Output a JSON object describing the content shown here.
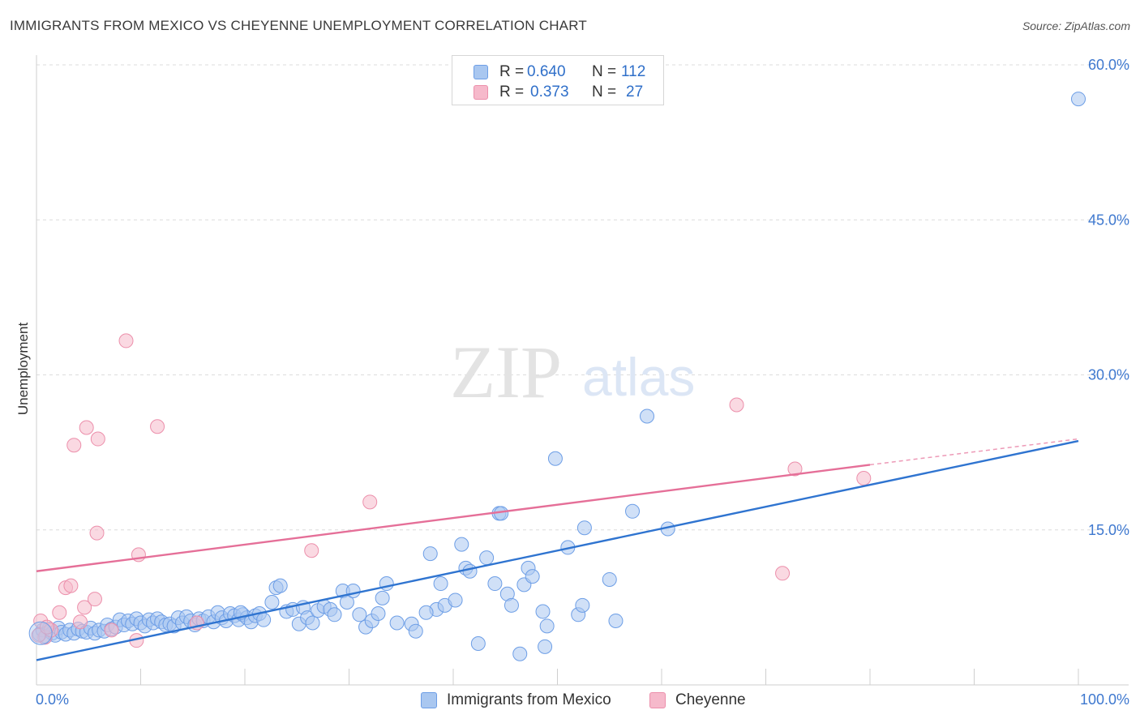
{
  "header": {
    "title": "IMMIGRANTS FROM MEXICO VS CHEYENNE UNEMPLOYMENT CORRELATION CHART",
    "source": "Source: ZipAtlas.com"
  },
  "watermark": {
    "zip": "ZIP",
    "atlas": "atlas"
  },
  "legend_top": {
    "rows": [
      {
        "r_label": "R =",
        "r_value": "0.640",
        "n_label": "N =",
        "n_value": "112",
        "color": "#a9c7f0",
        "border": "#6d9ee6"
      },
      {
        "r_label": "R =",
        "r_value": "0.373",
        "n_label": "N =",
        "n_value": "27",
        "color": "#f6b9cb",
        "border": "#ec8fab"
      }
    ]
  },
  "legend_bottom": {
    "items": [
      {
        "label": "Immigrants from Mexico",
        "color": "#a9c7f0",
        "border": "#6d9ee6"
      },
      {
        "label": "Cheyenne",
        "color": "#f6b9cb",
        "border": "#ec8fab"
      }
    ]
  },
  "chart_data": {
    "type": "scatter",
    "title": "IMMIGRANTS FROM MEXICO VS CHEYENNE UNEMPLOYMENT CORRELATION CHART",
    "xlabel": "",
    "ylabel": "Unemployment",
    "xlim": [
      0,
      100
    ],
    "ylim": [
      0,
      63
    ],
    "x_tick_labels": [
      "0.0%",
      "100.0%"
    ],
    "y_ticks": [
      15,
      30,
      45,
      60
    ],
    "y_tick_labels": [
      "15.0%",
      "30.0%",
      "45.0%",
      "60.0%"
    ],
    "grid": true,
    "legend_position": "top-center",
    "series": [
      {
        "name": "Immigrants from Mexico",
        "color": "#a9c7f0",
        "stroke": "#6d9ee6",
        "trend": {
          "x": [
            0,
            100
          ],
          "y": [
            2.4,
            23.6
          ],
          "color": "#2f74d0"
        },
        "points": [
          [
            0.3,
            4.9
          ],
          [
            0.6,
            5.3
          ],
          [
            0.9,
            4.7
          ],
          [
            1.2,
            5.4
          ],
          [
            1.5,
            5.0
          ],
          [
            1.8,
            4.8
          ],
          [
            2.1,
            5.5
          ],
          [
            2.4,
            5.1
          ],
          [
            2.8,
            4.9
          ],
          [
            3.2,
            5.3
          ],
          [
            3.6,
            5.0
          ],
          [
            4.0,
            5.4
          ],
          [
            4.4,
            5.2
          ],
          [
            4.8,
            5.1
          ],
          [
            5.2,
            5.5
          ],
          [
            5.6,
            5.0
          ],
          [
            6.0,
            5.3
          ],
          [
            6.5,
            5.2
          ],
          [
            6.8,
            5.8
          ],
          [
            7.2,
            5.4
          ],
          [
            7.6,
            5.6
          ],
          [
            8.0,
            6.3
          ],
          [
            8.4,
            5.8
          ],
          [
            8.8,
            6.2
          ],
          [
            9.2,
            5.9
          ],
          [
            9.6,
            6.4
          ],
          [
            10.0,
            6.0
          ],
          [
            10.4,
            5.7
          ],
          [
            10.8,
            6.3
          ],
          [
            11.2,
            6.0
          ],
          [
            11.6,
            6.4
          ],
          [
            12.0,
            6.1
          ],
          [
            12.4,
            5.8
          ],
          [
            12.8,
            5.9
          ],
          [
            13.2,
            5.7
          ],
          [
            13.6,
            6.5
          ],
          [
            14.0,
            6.0
          ],
          [
            14.4,
            6.6
          ],
          [
            14.8,
            6.2
          ],
          [
            15.2,
            5.8
          ],
          [
            15.6,
            6.4
          ],
          [
            16.0,
            6.2
          ],
          [
            16.5,
            6.6
          ],
          [
            17.0,
            6.1
          ],
          [
            17.4,
            7.0
          ],
          [
            17.8,
            6.5
          ],
          [
            18.2,
            6.2
          ],
          [
            18.6,
            6.9
          ],
          [
            19.0,
            6.7
          ],
          [
            19.4,
            6.3
          ],
          [
            19.8,
            6.8
          ],
          [
            20.2,
            6.5
          ],
          [
            20.6,
            6.1
          ],
          [
            21.0,
            6.7
          ],
          [
            21.4,
            6.9
          ],
          [
            21.8,
            6.3
          ],
          [
            22.6,
            8.0
          ],
          [
            23.0,
            9.4
          ],
          [
            23.4,
            9.6
          ],
          [
            24.0,
            7.1
          ],
          [
            24.6,
            7.3
          ],
          [
            25.2,
            5.9
          ],
          [
            25.6,
            7.5
          ],
          [
            26.0,
            6.5
          ],
          [
            26.5,
            6.0
          ],
          [
            27.0,
            7.2
          ],
          [
            27.6,
            7.6
          ],
          [
            28.2,
            7.3
          ],
          [
            28.6,
            6.8
          ],
          [
            29.4,
            9.1
          ],
          [
            29.8,
            8.0
          ],
          [
            30.4,
            9.1
          ],
          [
            31.0,
            6.8
          ],
          [
            31.6,
            5.6
          ],
          [
            32.2,
            6.2
          ],
          [
            32.8,
            6.9
          ],
          [
            33.2,
            8.4
          ],
          [
            33.6,
            9.8
          ],
          [
            34.6,
            6.0
          ],
          [
            36.0,
            5.9
          ],
          [
            36.4,
            5.2
          ],
          [
            37.8,
            12.7
          ],
          [
            38.4,
            7.3
          ],
          [
            38.8,
            9.8
          ],
          [
            39.2,
            7.7
          ],
          [
            40.2,
            8.2
          ],
          [
            40.8,
            13.6
          ],
          [
            41.2,
            11.3
          ],
          [
            41.6,
            11.0
          ],
          [
            42.4,
            4.0
          ],
          [
            43.2,
            12.3
          ],
          [
            44.0,
            9.8
          ],
          [
            44.4,
            16.6
          ],
          [
            45.2,
            8.8
          ],
          [
            45.6,
            7.7
          ],
          [
            46.4,
            3.0
          ],
          [
            46.8,
            9.7
          ],
          [
            47.2,
            11.3
          ],
          [
            47.6,
            10.5
          ],
          [
            48.6,
            7.1
          ],
          [
            48.8,
            3.7
          ],
          [
            49.0,
            5.7
          ],
          [
            49.8,
            21.9
          ],
          [
            51.0,
            13.3
          ],
          [
            52.0,
            6.8
          ],
          [
            52.4,
            7.7
          ],
          [
            52.6,
            15.2
          ],
          [
            55.0,
            10.2
          ],
          [
            55.6,
            6.2
          ],
          [
            57.2,
            16.8
          ],
          [
            58.6,
            26.0
          ],
          [
            60.6,
            15.1
          ],
          [
            44.6,
            16.6
          ],
          [
            100.0,
            56.7
          ],
          [
            37.4,
            7.0
          ],
          [
            19.6,
            7.0
          ]
        ]
      },
      {
        "name": "Cheyenne",
        "color": "#f6b9cb",
        "stroke": "#ec8fab",
        "trend": {
          "x": [
            0,
            80
          ],
          "y": [
            11.0,
            21.3
          ],
          "dash_to": [
            100,
            23.8
          ],
          "color": "#e56f98"
        },
        "points": [
          [
            0.4,
            6.2
          ],
          [
            0.8,
            4.6
          ],
          [
            1.4,
            5.3
          ],
          [
            2.2,
            7.0
          ],
          [
            2.8,
            9.4
          ],
          [
            3.3,
            9.6
          ],
          [
            3.6,
            23.2
          ],
          [
            4.2,
            6.1
          ],
          [
            4.6,
            7.5
          ],
          [
            4.8,
            24.9
          ],
          [
            5.6,
            8.3
          ],
          [
            5.8,
            14.7
          ],
          [
            5.9,
            23.8
          ],
          [
            7.2,
            5.3
          ],
          [
            8.6,
            33.3
          ],
          [
            9.6,
            4.3
          ],
          [
            9.8,
            12.6
          ],
          [
            11.6,
            25.0
          ],
          [
            15.4,
            6.0
          ],
          [
            26.4,
            13.0
          ],
          [
            32.0,
            17.7
          ],
          [
            67.2,
            27.1
          ],
          [
            71.6,
            10.8
          ],
          [
            72.8,
            20.9
          ],
          [
            79.4,
            20.0
          ],
          [
            0.2,
            4.8
          ],
          [
            1.0,
            5.6
          ]
        ]
      }
    ]
  }
}
